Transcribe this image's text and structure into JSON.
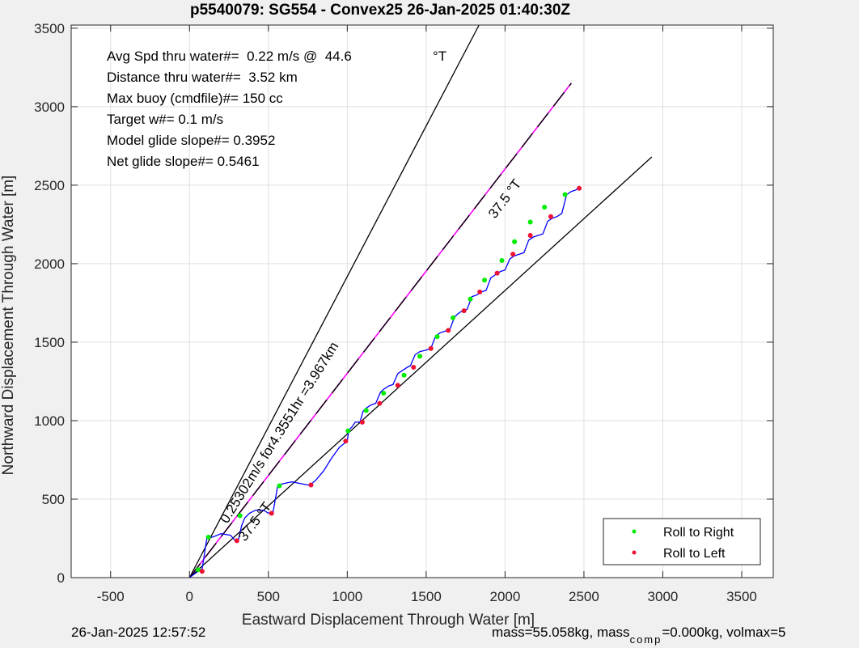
{
  "chart_data": {
    "type": "line",
    "title": "p5540079: SG554 - Convex25 26-Jan-2025 01:40:30Z",
    "xlabel": "Eastward Displacement Through Water [m]",
    "ylabel": "Northward Displacement Through Water [m]",
    "xlim": [
      -750,
      3700
    ],
    "ylim": [
      0,
      3520
    ],
    "xticks": [
      -500,
      0,
      500,
      1000,
      1500,
      2000,
      2500,
      3000,
      3500
    ],
    "yticks": [
      0,
      500,
      1000,
      1500,
      2000,
      2500,
      3000,
      3500
    ],
    "grid": true,
    "info_lines": [
      "Avg Spd thru water#=  0.22 m/s @  44.6",
      "Distance thru water#=  3.52 km",
      "Max buoy (cmdfile)#= 150 cc",
      "Target w#= 0.1 m/s",
      "Model glide slope#= 0.3952",
      "Net glide slope#= 0.5461"
    ],
    "info_unit": "°T",
    "annotations": {
      "heading_upper": "37.5 °T",
      "heading_lower": "37.5 °T",
      "drift_label": "0.25302m/s for4.3551hr =3.967km"
    },
    "bounding_lines": [
      {
        "x": [
          0,
          1835
        ],
        "y": [
          0,
          3520
        ]
      },
      {
        "x": [
          0,
          2930
        ],
        "y": [
          0,
          2680
        ]
      }
    ],
    "target_line": {
      "x": [
        0,
        2420
      ],
      "y": [
        0,
        3150
      ],
      "color": "#ff00ff"
    },
    "track": {
      "x": [
        0,
        60,
        80,
        110,
        150,
        200,
        260,
        290,
        310,
        330,
        350,
        380,
        420,
        470,
        500,
        530,
        560,
        600,
        650,
        700,
        750,
        770,
        800,
        850,
        900,
        950,
        1000,
        1010,
        1030,
        1050,
        1080,
        1100,
        1120,
        1150,
        1180,
        1210,
        1230,
        1260,
        1290,
        1320,
        1350,
        1380,
        1400,
        1430,
        1460,
        1500,
        1530,
        1560,
        1590,
        1620,
        1650,
        1680,
        1700,
        1730,
        1760,
        1790,
        1820,
        1850,
        1880,
        1910,
        1940,
        1970,
        2000,
        2030,
        2060,
        2090,
        2120,
        2150,
        2180,
        2210,
        2240,
        2270,
        2300,
        2330,
        2360,
        2390,
        2420,
        2450,
        2470
      ],
      "y": [
        0,
        45,
        55,
        250,
        260,
        280,
        270,
        235,
        240,
        330,
        380,
        410,
        430,
        430,
        410,
        420,
        590,
        600,
        610,
        600,
        590,
        595,
        620,
        680,
        760,
        830,
        870,
        940,
        960,
        990,
        990,
        1060,
        1080,
        1100,
        1110,
        1180,
        1200,
        1220,
        1230,
        1300,
        1320,
        1340,
        1350,
        1420,
        1440,
        1450,
        1460,
        1540,
        1560,
        1570,
        1580,
        1660,
        1680,
        1700,
        1710,
        1790,
        1800,
        1820,
        1830,
        1910,
        1930,
        1950,
        1960,
        2030,
        2050,
        2060,
        2070,
        2150,
        2170,
        2180,
        2190,
        2270,
        2290,
        2300,
        2320,
        2440,
        2460,
        2470,
        2490
      ],
      "color": "#0000ff"
    },
    "roll_right": {
      "x": [
        55,
        120,
        320,
        570,
        1005,
        1120,
        1230,
        1360,
        1460,
        1570,
        1670,
        1780,
        1870,
        1980,
        2060,
        2160,
        2250,
        2380
      ],
      "y": [
        50,
        258,
        395,
        585,
        935,
        1065,
        1175,
        1290,
        1410,
        1535,
        1655,
        1775,
        1895,
        2020,
        2140,
        2265,
        2360,
        2440
      ],
      "color": "#00ee00"
    },
    "roll_left": {
      "x": [
        80,
        300,
        520,
        770,
        990,
        1095,
        1205,
        1320,
        1420,
        1530,
        1640,
        1740,
        1840,
        1950,
        2050,
        2160,
        2290,
        2470
      ],
      "y": [
        40,
        235,
        410,
        590,
        870,
        990,
        1110,
        1225,
        1340,
        1460,
        1575,
        1700,
        1820,
        1940,
        2060,
        2180,
        2300,
        2480
      ],
      "color": "#ee1133"
    },
    "legend": {
      "placement": "bottom-right",
      "entries": [
        {
          "label": "Roll to Right",
          "color": "#00ee00"
        },
        {
          "label": "Roll to Left",
          "color": "#ee1133"
        }
      ]
    }
  },
  "footer": {
    "timestamp": "26-Jan-2025 12:57:52",
    "mass_a": "mass=55.058kg, mass",
    "mass_sub": "comp",
    "mass_b": "=0.000kg, volmax=5"
  }
}
